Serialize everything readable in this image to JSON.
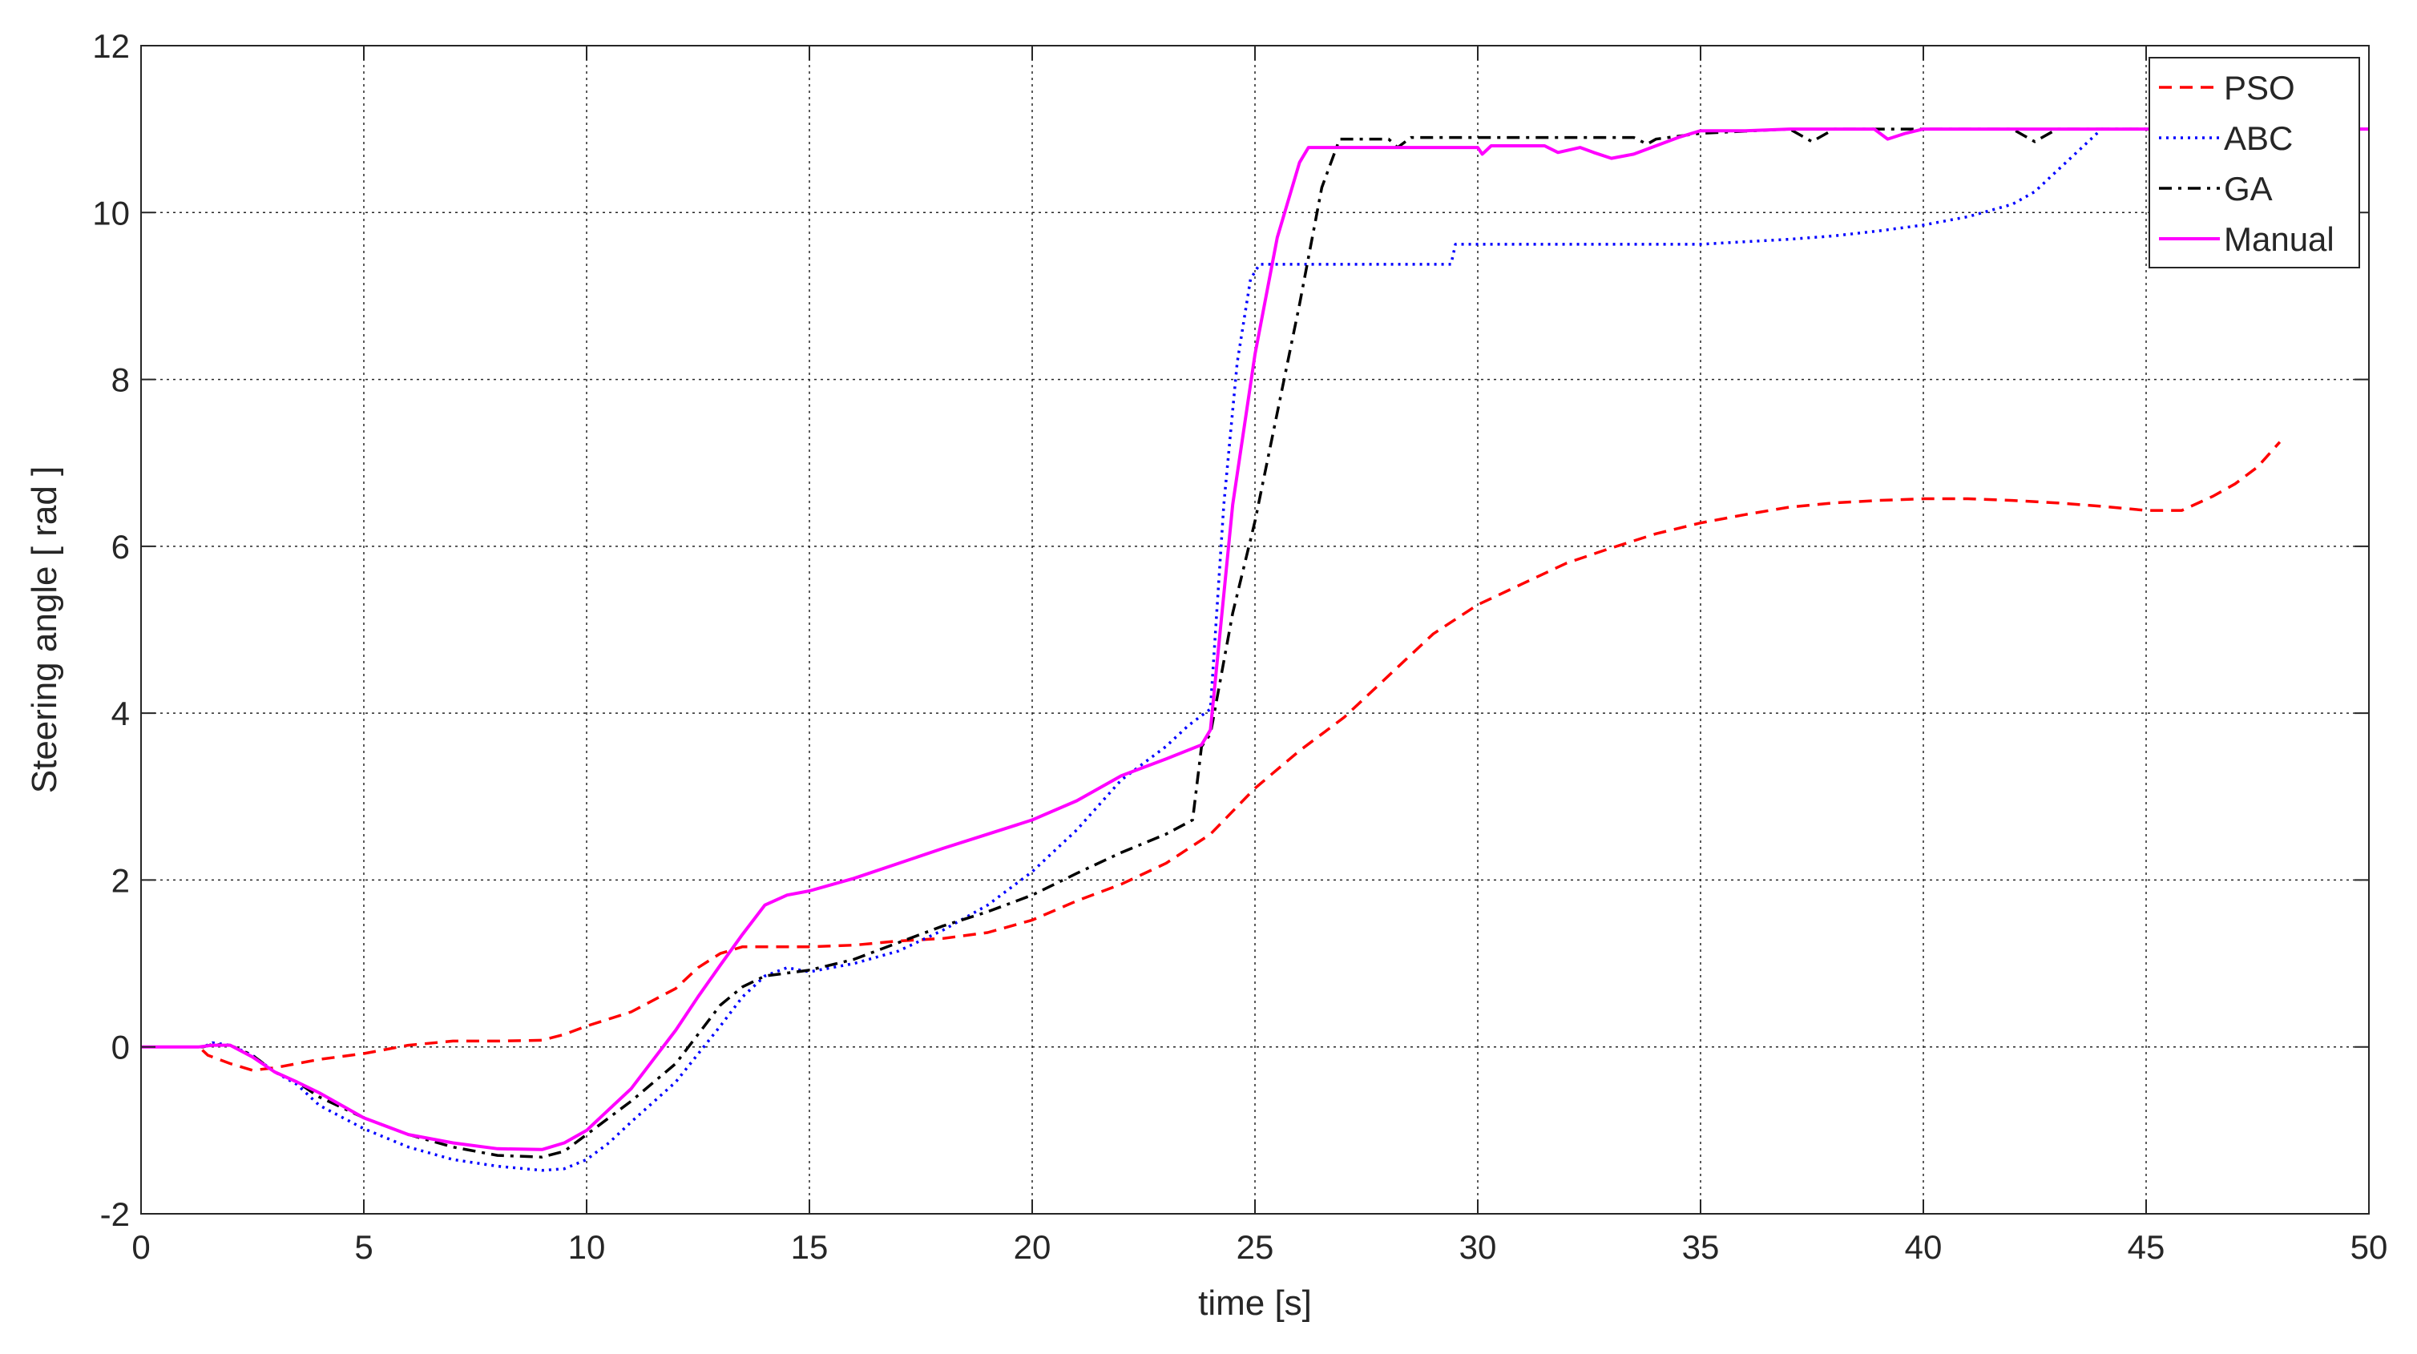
{
  "chart_data": {
    "type": "line",
    "xlabel": "time [s]",
    "ylabel": "Steering angle [ rad ]",
    "xlim": [
      0,
      50
    ],
    "ylim": [
      -2,
      12
    ],
    "xticks": [
      0,
      5,
      10,
      15,
      20,
      25,
      30,
      35,
      40,
      45,
      50
    ],
    "yticks": [
      -2,
      0,
      2,
      4,
      6,
      8,
      10,
      12
    ],
    "grid": true,
    "legend_position": "top-right",
    "series": [
      {
        "name": "PSO",
        "color": "#ff0000",
        "style": "dashed",
        "points": [
          [
            0,
            0
          ],
          [
            1.3,
            0
          ],
          [
            1.5,
            -0.1
          ],
          [
            2,
            -0.2
          ],
          [
            2.5,
            -0.28
          ],
          [
            3,
            -0.25
          ],
          [
            3.5,
            -0.2
          ],
          [
            4,
            -0.15
          ],
          [
            5,
            -0.08
          ],
          [
            6,
            0.02
          ],
          [
            7,
            0.07
          ],
          [
            8,
            0.07
          ],
          [
            9,
            0.08
          ],
          [
            9.5,
            0.15
          ],
          [
            10,
            0.25
          ],
          [
            11,
            0.42
          ],
          [
            12,
            0.7
          ],
          [
            12.5,
            0.95
          ],
          [
            13,
            1.12
          ],
          [
            13.5,
            1.2
          ],
          [
            14,
            1.2
          ],
          [
            15,
            1.2
          ],
          [
            16,
            1.22
          ],
          [
            17,
            1.27
          ],
          [
            18,
            1.3
          ],
          [
            19,
            1.37
          ],
          [
            20,
            1.52
          ],
          [
            21,
            1.75
          ],
          [
            22,
            1.95
          ],
          [
            23,
            2.2
          ],
          [
            24,
            2.55
          ],
          [
            25,
            3.1
          ],
          [
            26,
            3.55
          ],
          [
            27,
            3.95
          ],
          [
            28,
            4.45
          ],
          [
            29,
            4.95
          ],
          [
            30,
            5.3
          ],
          [
            31,
            5.55
          ],
          [
            32,
            5.8
          ],
          [
            33,
            5.98
          ],
          [
            34,
            6.15
          ],
          [
            35,
            6.28
          ],
          [
            36,
            6.38
          ],
          [
            37,
            6.47
          ],
          [
            38,
            6.52
          ],
          [
            39,
            6.55
          ],
          [
            40,
            6.57
          ],
          [
            41,
            6.57
          ],
          [
            42,
            6.55
          ],
          [
            43,
            6.52
          ],
          [
            44,
            6.48
          ],
          [
            45,
            6.43
          ],
          [
            45.8,
            6.43
          ],
          [
            46.5,
            6.6
          ],
          [
            47,
            6.75
          ],
          [
            47.5,
            6.95
          ],
          [
            48,
            7.25
          ]
        ]
      },
      {
        "name": "ABC",
        "color": "#0000ff",
        "style": "dotted",
        "points": [
          [
            0,
            0
          ],
          [
            1.4,
            0
          ],
          [
            1.6,
            0.05
          ],
          [
            2,
            0.02
          ],
          [
            2.5,
            -0.1
          ],
          [
            3,
            -0.3
          ],
          [
            3.5,
            -0.45
          ],
          [
            4,
            -0.7
          ],
          [
            5,
            -0.98
          ],
          [
            6,
            -1.2
          ],
          [
            7,
            -1.35
          ],
          [
            8,
            -1.43
          ],
          [
            9,
            -1.48
          ],
          [
            9.5,
            -1.46
          ],
          [
            10,
            -1.35
          ],
          [
            10.5,
            -1.15
          ],
          [
            11,
            -0.9
          ],
          [
            12,
            -0.42
          ],
          [
            13,
            0.25
          ],
          [
            13.5,
            0.6
          ],
          [
            14,
            0.85
          ],
          [
            14.5,
            0.95
          ],
          [
            15,
            0.9
          ],
          [
            16,
            1.0
          ],
          [
            17,
            1.15
          ],
          [
            18,
            1.4
          ],
          [
            19,
            1.7
          ],
          [
            20,
            2.1
          ],
          [
            21,
            2.6
          ],
          [
            22,
            3.2
          ],
          [
            23,
            3.6
          ],
          [
            23.5,
            3.85
          ],
          [
            24,
            4.05
          ],
          [
            24.3,
            6.5
          ],
          [
            24.6,
            8.2
          ],
          [
            24.9,
            9.2
          ],
          [
            25.1,
            9.38
          ],
          [
            27,
            9.38
          ],
          [
            28,
            9.38
          ],
          [
            29,
            9.38
          ],
          [
            29.4,
            9.38
          ],
          [
            29.5,
            9.62
          ],
          [
            31,
            9.62
          ],
          [
            33,
            9.62
          ],
          [
            35,
            9.62
          ],
          [
            36,
            9.65
          ],
          [
            37,
            9.68
          ],
          [
            38,
            9.72
          ],
          [
            39,
            9.78
          ],
          [
            40,
            9.85
          ],
          [
            41,
            9.95
          ],
          [
            42,
            10.1
          ],
          [
            42.5,
            10.25
          ],
          [
            43,
            10.5
          ],
          [
            43.5,
            10.75
          ],
          [
            44,
            11.0
          ],
          [
            50,
            11.0
          ]
        ]
      },
      {
        "name": "GA",
        "color": "#000000",
        "style": "dashdot",
        "points": [
          [
            0,
            0
          ],
          [
            1.4,
            0
          ],
          [
            1.6,
            0.03
          ],
          [
            2,
            0.02
          ],
          [
            2.5,
            -0.1
          ],
          [
            3,
            -0.3
          ],
          [
            3.5,
            -0.42
          ],
          [
            4,
            -0.6
          ],
          [
            5,
            -0.85
          ],
          [
            6,
            -1.05
          ],
          [
            7,
            -1.2
          ],
          [
            8,
            -1.3
          ],
          [
            9,
            -1.32
          ],
          [
            9.5,
            -1.25
          ],
          [
            10,
            -1.05
          ],
          [
            10.5,
            -0.85
          ],
          [
            11,
            -0.65
          ],
          [
            12,
            -0.2
          ],
          [
            12.5,
            0.15
          ],
          [
            13,
            0.5
          ],
          [
            13.5,
            0.72
          ],
          [
            14,
            0.85
          ],
          [
            15,
            0.92
          ],
          [
            16,
            1.05
          ],
          [
            17,
            1.25
          ],
          [
            18,
            1.45
          ],
          [
            19,
            1.62
          ],
          [
            20,
            1.82
          ],
          [
            21,
            2.08
          ],
          [
            22,
            2.33
          ],
          [
            23,
            2.55
          ],
          [
            23.6,
            2.72
          ],
          [
            23.8,
            3.6
          ],
          [
            24,
            3.75
          ],
          [
            24.5,
            5.2
          ],
          [
            25,
            6.3
          ],
          [
            25.5,
            7.6
          ],
          [
            26,
            8.9
          ],
          [
            26.5,
            10.3
          ],
          [
            26.9,
            10.88
          ],
          [
            28,
            10.88
          ],
          [
            28.2,
            10.78
          ],
          [
            28.5,
            10.9
          ],
          [
            33.5,
            10.9
          ],
          [
            33.8,
            10.82
          ],
          [
            34,
            10.88
          ],
          [
            35,
            10.95
          ],
          [
            37,
            11.0
          ],
          [
            37.5,
            10.85
          ],
          [
            38,
            11.0
          ],
          [
            40,
            11.0
          ],
          [
            42,
            11.0
          ],
          [
            42.5,
            10.85
          ],
          [
            43,
            11.0
          ],
          [
            50,
            11.0
          ]
        ]
      },
      {
        "name": "Manual",
        "color": "#ff00ff",
        "style": "solid",
        "points": [
          [
            0,
            0
          ],
          [
            1.3,
            0
          ],
          [
            1.6,
            0.02
          ],
          [
            2,
            0.02
          ],
          [
            2.5,
            -0.12
          ],
          [
            3,
            -0.3
          ],
          [
            3.5,
            -0.42
          ],
          [
            4,
            -0.55
          ],
          [
            5,
            -0.85
          ],
          [
            6,
            -1.05
          ],
          [
            7,
            -1.15
          ],
          [
            8,
            -1.22
          ],
          [
            9,
            -1.23
          ],
          [
            9.5,
            -1.15
          ],
          [
            10,
            -1.0
          ],
          [
            10.5,
            -0.75
          ],
          [
            11,
            -0.5
          ],
          [
            11.5,
            -0.15
          ],
          [
            12,
            0.2
          ],
          [
            12.5,
            0.6
          ],
          [
            13,
            0.98
          ],
          [
            13.5,
            1.35
          ],
          [
            14,
            1.7
          ],
          [
            14.5,
            1.82
          ],
          [
            15,
            1.87
          ],
          [
            16,
            2.02
          ],
          [
            17,
            2.2
          ],
          [
            18,
            2.38
          ],
          [
            19,
            2.55
          ],
          [
            20,
            2.72
          ],
          [
            21,
            2.95
          ],
          [
            22,
            3.25
          ],
          [
            23,
            3.45
          ],
          [
            23.8,
            3.62
          ],
          [
            24,
            3.8
          ],
          [
            24.5,
            6.5
          ],
          [
            25,
            8.3
          ],
          [
            25.5,
            9.7
          ],
          [
            26,
            10.6
          ],
          [
            26.2,
            10.78
          ],
          [
            28,
            10.78
          ],
          [
            30,
            10.78
          ],
          [
            30.1,
            10.7
          ],
          [
            30.3,
            10.8
          ],
          [
            31.5,
            10.8
          ],
          [
            31.8,
            10.72
          ],
          [
            32.3,
            10.78
          ],
          [
            32.6,
            10.72
          ],
          [
            33,
            10.65
          ],
          [
            33.5,
            10.7
          ],
          [
            34,
            10.8
          ],
          [
            34.5,
            10.9
          ],
          [
            35,
            10.98
          ],
          [
            36,
            10.98
          ],
          [
            37,
            11.0
          ],
          [
            38.9,
            11.0
          ],
          [
            39.2,
            10.88
          ],
          [
            39.6,
            10.95
          ],
          [
            40,
            11.0
          ],
          [
            50,
            11.0
          ]
        ]
      }
    ]
  }
}
